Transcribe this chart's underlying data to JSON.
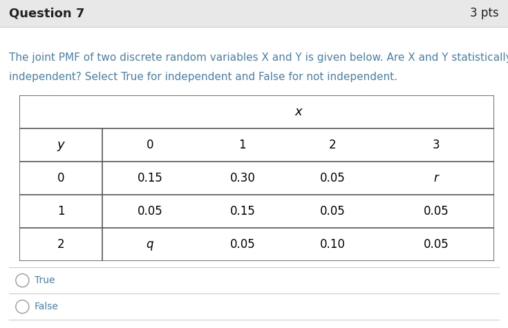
{
  "title": "Question 7",
  "pts": "3 pts",
  "question_text_line1": "The joint PMF of two discrete random variables X and Y is given below. Are X and Y statistically",
  "question_text_line2": "independent? Select True for independent and False for not independent.",
  "header_bg_color": "#e8e8e8",
  "body_bg_color": "#ffffff",
  "header_text_color": "#222222",
  "question_text_color": "#4a7fa8",
  "option_text_color": "#4a7fa8",
  "table_border_color": "#555555",
  "separator_color": "#cccccc",
  "table_x_label": "x",
  "table_y_label": "y",
  "col_headers": [
    "0",
    "1",
    "2",
    "3"
  ],
  "row_headers": [
    "0",
    "1",
    "2"
  ],
  "table_data": [
    [
      "0.15",
      "0.30",
      "0.05",
      "r"
    ],
    [
      "0.05",
      "0.15",
      "0.05",
      "0.05"
    ],
    [
      "q",
      "0.05",
      "0.10",
      "0.05"
    ]
  ],
  "option1": "True",
  "option2": "False",
  "title_fontsize": 13,
  "pts_fontsize": 12,
  "body_fontsize": 11,
  "table_fontsize": 12
}
